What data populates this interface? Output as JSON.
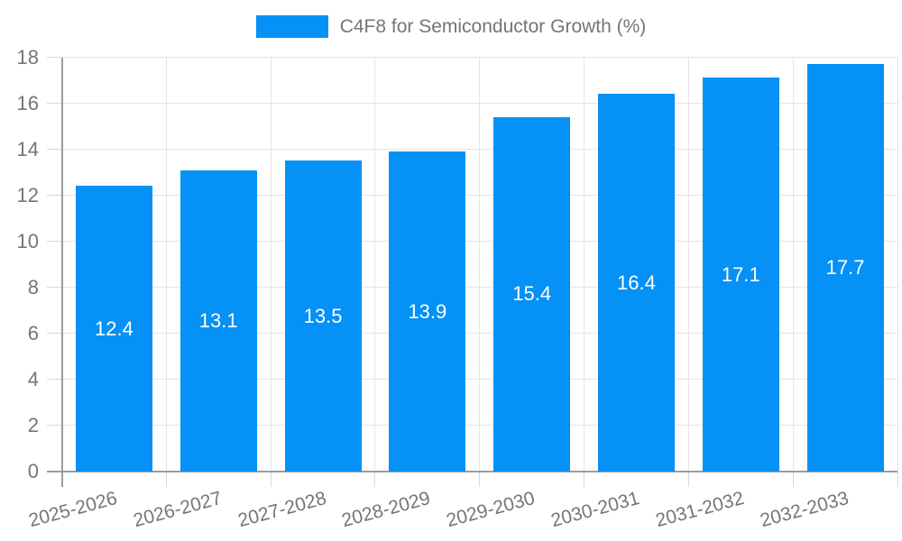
{
  "chart_data": {
    "type": "bar",
    "title": "C4F8 for Semiconductor Growth (%)",
    "categories": [
      "2025-2026",
      "2026-2027",
      "2027-2028",
      "2028-2029",
      "2029-2030",
      "2030-2031",
      "2031-2032",
      "2032-2033"
    ],
    "values": [
      12.4,
      13.1,
      13.5,
      13.9,
      15.4,
      16.4,
      17.1,
      17.7
    ],
    "value_labels": [
      "12.4",
      "13.1",
      "13.5",
      "13.9",
      "15.4",
      "16.4",
      "17.1",
      "17.7"
    ],
    "xlabel": "",
    "ylabel": "",
    "ylim": [
      0,
      18
    ],
    "yticks": [
      0,
      2,
      4,
      6,
      8,
      10,
      12,
      14,
      16,
      18
    ],
    "grid": true,
    "legend": {
      "label": "C4F8 for Semiconductor Growth (%)",
      "position": "top-center"
    },
    "bar_label_position": "inside-center"
  },
  "colors": {
    "bar": "#0591f5",
    "grid": "#e4e4e4",
    "axis": "#9c9c9c",
    "tick": "#d8d8d8",
    "label": "#757575",
    "value_label": "#ffffff",
    "background": "#ffffff"
  }
}
